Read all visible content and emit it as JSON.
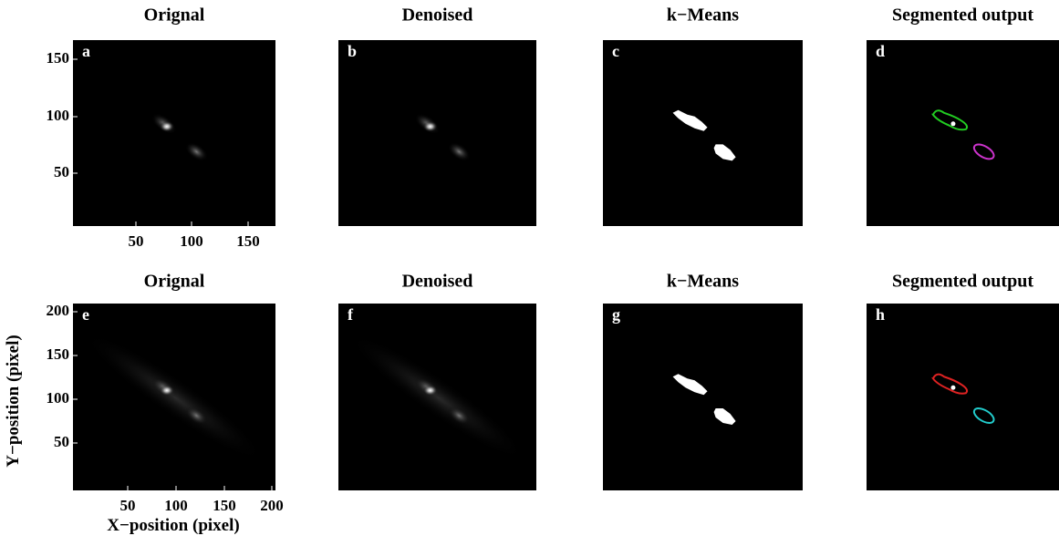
{
  "rows": [
    {
      "panels": [
        {
          "title": "Orignal",
          "letter": "a"
        },
        {
          "title": "Denoised",
          "letter": "b"
        },
        {
          "title": "k−Means",
          "letter": "c"
        },
        {
          "title": "Segmented output",
          "letter": "d"
        }
      ],
      "y_ticks": [
        150,
        100,
        50
      ],
      "x_ticks": [
        50,
        100,
        150
      ]
    },
    {
      "panels": [
        {
          "title": "Orignal",
          "letter": "e"
        },
        {
          "title": "Denoised",
          "letter": "f"
        },
        {
          "title": "k−Means",
          "letter": "g"
        },
        {
          "title": "Segmented output",
          "letter": "h"
        }
      ],
      "y_ticks": [
        200,
        150,
        100,
        50
      ],
      "x_ticks": [
        50,
        100,
        150,
        200
      ]
    }
  ],
  "x_axis_label": "X−position (pixel)",
  "y_axis_label": "Y−position (pixel)"
}
